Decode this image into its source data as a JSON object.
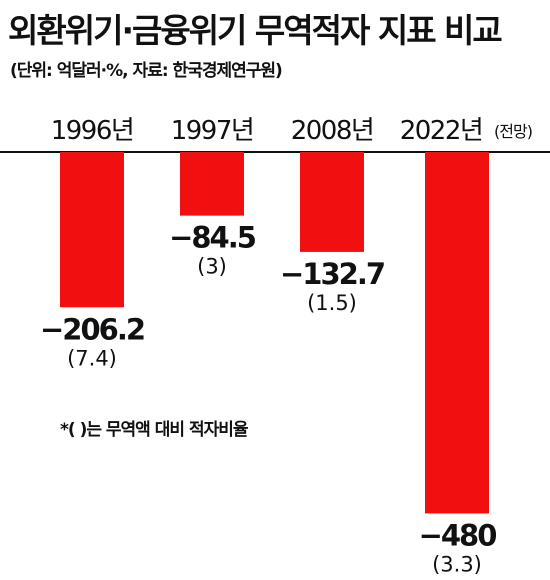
{
  "title": "외환위기·금융위기 무역적자 지표 비교",
  "subtitle": "(단위: 억달러·%, 자료: 한국경제연구원)",
  "note": "*( )는 무역액 대비 적자비율",
  "colors": {
    "bar": "#f01010",
    "baseline": "#111111",
    "text": "#111111"
  },
  "chart_data": {
    "type": "bar",
    "categories": [
      "1996년",
      "1997년",
      "2008년",
      "2022년"
    ],
    "category_suffix": [
      "",
      "",
      "",
      "(전망)"
    ],
    "values": [
      -206.2,
      -84.5,
      -132.7,
      -480
    ],
    "value_labels": [
      "−206.2",
      "−84.5",
      "−132.7",
      "−480"
    ],
    "ratio_labels": [
      "(7.4)",
      "(3)",
      "(1.5)",
      "(3.3)"
    ],
    "ylim": [
      -500,
      0
    ],
    "grid": false
  }
}
